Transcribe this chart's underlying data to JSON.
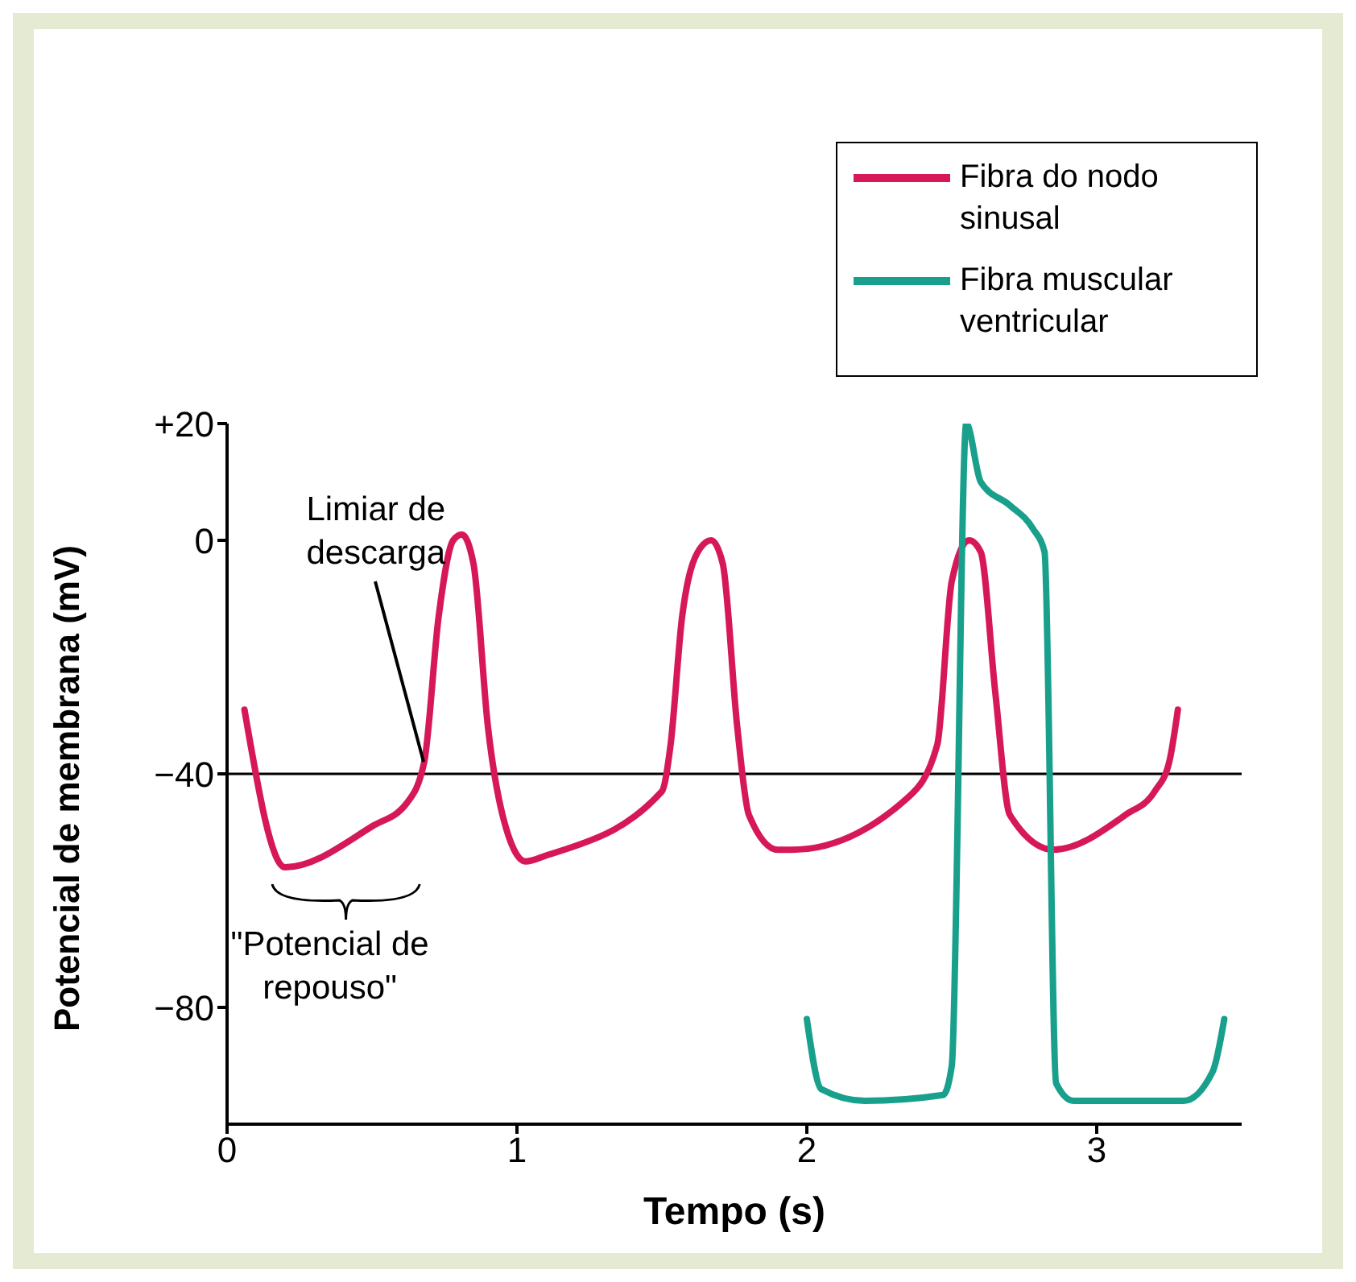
{
  "chart_data": {
    "type": "line",
    "xlabel": "Tempo (s)",
    "ylabel": "Potencial de membrana (mV)",
    "xlim": [
      0,
      3.5
    ],
    "ylim": [
      -100,
      20
    ],
    "xticks": [
      0,
      1,
      2,
      3
    ],
    "yticks": [
      {
        "value": 20,
        "label": "+20"
      },
      0,
      {
        "value": -40,
        "label": "−40"
      },
      {
        "value": -80,
        "label": "−80"
      }
    ],
    "grid": false,
    "legend": "top right",
    "marker": "none",
    "line_style": "solid",
    "ref_lines": [
      {
        "axis": "y",
        "value": -40,
        "color": "#000000"
      }
    ],
    "annotations": [
      {
        "text": "Limiar de descarga",
        "x": 0.68,
        "y": -38
      },
      "\"Potencial de repouso\""
    ],
    "series": [
      {
        "name": "Fibra do nodo sinusal",
        "color": "#d6185a",
        "x": [
          0.06,
          0.2,
          0.5,
          0.62,
          0.68,
          0.73,
          0.78,
          0.81,
          0.85,
          0.9,
          0.95,
          1.03,
          1.1,
          1.5,
          1.53,
          1.57,
          1.63,
          1.67,
          1.71,
          1.76,
          1.8,
          1.9,
          1.95,
          2.35,
          2.45,
          2.5,
          2.56,
          2.6,
          2.65,
          2.7,
          2.85,
          3.1,
          3.2,
          3.25,
          3.28
        ],
        "values": [
          -29,
          -56,
          -49,
          -45,
          -38,
          -13,
          0,
          1,
          -4,
          -32,
          -47,
          -55,
          -54,
          -43,
          -35,
          -13,
          -1.5,
          0,
          -4,
          -32,
          -47,
          -53,
          -53,
          -44,
          -35,
          -7,
          0,
          -2,
          -26,
          -47,
          -53,
          -47,
          -43,
          -38,
          -29
        ]
      },
      {
        "name": "Fibra muscular ventricular",
        "color": "#18a08c",
        "x": [
          2.0,
          2.05,
          2.2,
          2.47,
          2.5,
          2.55,
          2.6,
          2.7,
          2.78,
          2.82,
          2.86,
          2.92,
          3.3,
          3.4,
          3.44
        ],
        "values": [
          -82,
          -94,
          -96,
          -95,
          -90,
          20,
          10,
          6,
          2,
          -2,
          -93,
          -96,
          -96,
          -91,
          -82
        ]
      }
    ]
  }
}
